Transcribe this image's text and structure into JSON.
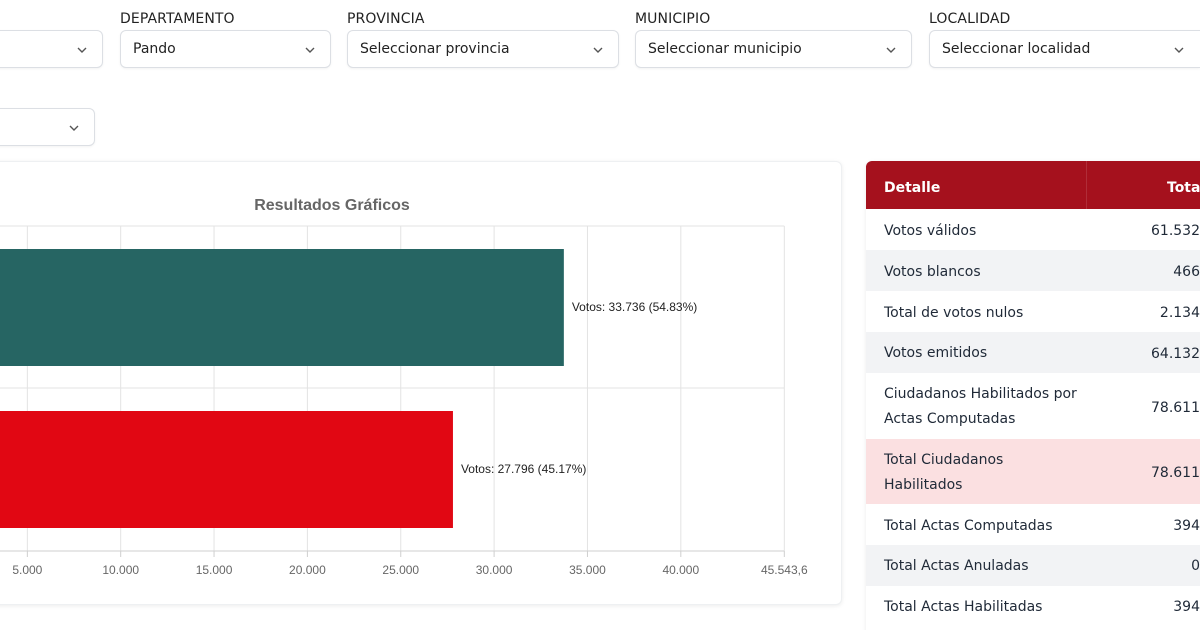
{
  "filters": {
    "first": {
      "value": ""
    },
    "departamento": {
      "label": "DEPARTAMENTO",
      "value": "Pando"
    },
    "provincia": {
      "label": "PROVINCIA",
      "value": "Seleccionar provincia"
    },
    "municipio": {
      "label": "MUNICIPIO",
      "value": "Seleccionar municipio"
    },
    "localidad": {
      "label": "LOCALIDAD",
      "value": "Seleccionar localidad"
    },
    "second_row": {
      "value": ""
    }
  },
  "chart_data": {
    "type": "bar",
    "orientation": "horizontal",
    "title": "Resultados Gráficos",
    "xlim": [
      0,
      45543.6
    ],
    "x_ticks": [
      "5.000",
      "10.000",
      "15.000",
      "20.000",
      "25.000",
      "30.000",
      "35.000",
      "40.000",
      "45.543,6"
    ],
    "x_tick_values": [
      5000,
      10000,
      15000,
      20000,
      25000,
      30000,
      35000,
      40000,
      45543.6
    ],
    "bars": [
      {
        "value": 33736,
        "label": "Votos: 33.736 (54.83%)",
        "color": "#266563"
      },
      {
        "value": 27796,
        "label": "Votos: 27.796 (45.17%)",
        "color": "#e10713"
      }
    ],
    "grid": true
  },
  "table": {
    "header": {
      "detail": "Detalle",
      "total": "Total"
    },
    "header_color": "#a5111d",
    "rows": [
      {
        "label": "Votos válidos",
        "value": "61.532"
      },
      {
        "label": "Votos blancos",
        "value": "466"
      },
      {
        "label": "Total de votos nulos",
        "value": "2.134"
      },
      {
        "label": "Votos emitidos",
        "value": "64.132"
      },
      {
        "label": "Ciudadanos Habilitados por Actas Computadas",
        "value": "78.611"
      },
      {
        "label": "Total Ciudadanos Habilitados",
        "value": "78.611"
      },
      {
        "label": "Total Actas Computadas",
        "value": "394"
      },
      {
        "label": "Total Actas Anuladas",
        "value": "0"
      },
      {
        "label": "Total Actas Habilitadas",
        "value": "394"
      }
    ]
  }
}
